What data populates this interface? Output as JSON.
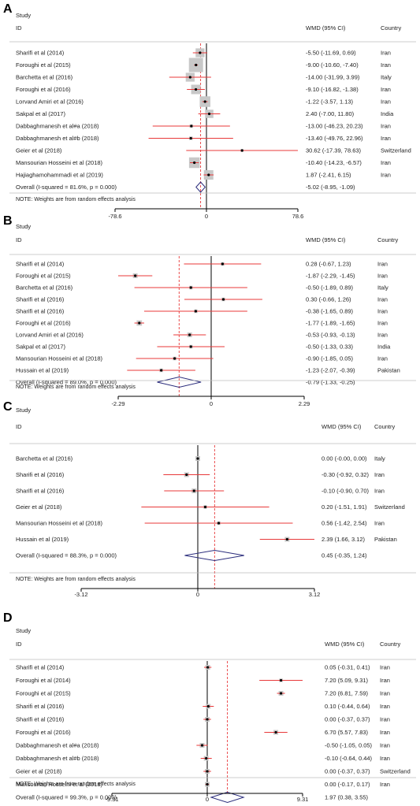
{
  "chart_data": [
    {
      "type": "forest",
      "panel_label": "A",
      "header": {
        "study": "Study",
        "id": "ID",
        "effect": "WMD (95% CI)",
        "country": "Country"
      },
      "xticks": [
        -78.6,
        0,
        78.6
      ],
      "xlim": [
        -78.6,
        78.6
      ],
      "null_line": 0,
      "studies": [
        {
          "label": "Sharifi et al (2014)",
          "est": -5.5,
          "lo": -11.69,
          "hi": 0.69,
          "text": "-5.50 (-11.69, 0.69)",
          "country": "Iran",
          "weight": 0.55
        },
        {
          "label": "Foroughi et al (2015)",
          "est": -9.0,
          "lo": -10.6,
          "hi": -7.4,
          "text": "-9.00 (-10.60, -7.40)",
          "country": "Iran",
          "weight": 1.0
        },
        {
          "label": "Barchetta et al (2016)",
          "est": -14.0,
          "lo": -31.99,
          "hi": 3.99,
          "text": "-14.00 (-31.99, 3.99)",
          "country": "Italy",
          "weight": 0.55
        },
        {
          "label": "Foroughi et al (2016)",
          "est": -9.1,
          "lo": -16.82,
          "hi": -1.38,
          "text": "-9.10 (-16.82, -1.38)",
          "country": "Iran",
          "weight": 0.6
        },
        {
          "label": "Lorvand Amiri et al (2016)",
          "est": -1.22,
          "lo": -3.57,
          "hi": 1.13,
          "text": "-1.22 (-3.57, 1.13)",
          "country": "Iran",
          "weight": 0.7
        },
        {
          "label": "Sakpal et al (2017)",
          "est": 2.4,
          "lo": -7.0,
          "hi": 11.8,
          "text": "2.40 (-7.00, 11.80)",
          "country": "India",
          "weight": 0.5
        },
        {
          "label": "Dabbaghmanesh et al#a (2018)",
          "est": -13.0,
          "lo": -46.23,
          "hi": 20.23,
          "text": "-13.00 (-46.23, 20.23)",
          "country": "Iran",
          "weight": 0.1
        },
        {
          "label": "Dabbaghmanesh et al#b (2018)",
          "est": -13.4,
          "lo": -49.76,
          "hi": 22.96,
          "text": "-13.40 (-49.76, 22.96)",
          "country": "Iran",
          "weight": 0.1
        },
        {
          "label": "Geier et al (2018)",
          "est": 30.62,
          "lo": -17.39,
          "hi": 78.63,
          "text": "30.62 (-17.39, 78.63)",
          "country": "Switzerland",
          "weight": 0.05
        },
        {
          "label": "Mansourian Hosseini et al (2018)",
          "est": -10.4,
          "lo": -14.23,
          "hi": -6.57,
          "text": "-10.40 (-14.23, -6.57)",
          "country": "Iran",
          "weight": 0.7
        },
        {
          "label": "Hajiaghamohammadi et al (2019)",
          "est": 1.87,
          "lo": -2.41,
          "hi": 6.15,
          "text": "1.87 (-2.41, 6.15)",
          "country": "Iran",
          "weight": 0.6
        }
      ],
      "overall": {
        "label": "Overall  (I-squared = 81.6%, p = 0.000)",
        "est": -5.02,
        "lo": -8.95,
        "hi": -1.09,
        "text": "-5.02 (-8.95, -1.09)"
      },
      "note": "NOTE: Weights are from random effects analysis"
    },
    {
      "type": "forest",
      "panel_label": "B",
      "header": {
        "study": "Study",
        "id": "ID",
        "effect": "WMD (95% CI)",
        "country": "Country"
      },
      "xticks": [
        -2.29,
        0,
        2.29
      ],
      "xlim": [
        -2.29,
        2.29
      ],
      "null_line": 0,
      "studies": [
        {
          "label": "Sharifi et al (2014)",
          "est": 0.28,
          "lo": -0.67,
          "hi": 1.23,
          "text": "0.28 (-0.67, 1.23)",
          "country": "Iran",
          "weight": 0.1
        },
        {
          "label": "Foroughi et al (2015)",
          "est": -1.87,
          "lo": -2.29,
          "hi": -1.45,
          "text": "-1.87 (-2.29, -1.45)",
          "country": "Iran",
          "weight": 0.2
        },
        {
          "label": "Barchetta et al (2016)",
          "est": -0.5,
          "lo": -1.89,
          "hi": 0.89,
          "text": "-0.50 (-1.89, 0.89)",
          "country": "Italy",
          "weight": 0.1
        },
        {
          "label": "Sharifi et al (2016)",
          "est": 0.3,
          "lo": -0.66,
          "hi": 1.26,
          "text": "0.30 (-0.66, 1.26)",
          "country": "Iran",
          "weight": 0.1
        },
        {
          "label": "Sharifi et al (2016)",
          "est": -0.38,
          "lo": -1.65,
          "hi": 0.89,
          "text": "-0.38 (-1.65, 0.89)",
          "country": "Iran",
          "weight": 0.1
        },
        {
          "label": "Foroughi et al (2016)",
          "est": -1.77,
          "lo": -1.89,
          "hi": -1.65,
          "text": "-1.77 (-1.89, -1.65)",
          "country": "Iran",
          "weight": 0.25
        },
        {
          "label": "Lorvand Amiri et al (2016)",
          "est": -0.53,
          "lo": -0.93,
          "hi": -0.13,
          "text": "-0.53 (-0.93, -0.13)",
          "country": "Iran",
          "weight": 0.2
        },
        {
          "label": "Sakpal et al (2017)",
          "est": -0.5,
          "lo": -1.33,
          "hi": 0.33,
          "text": "-0.50 (-1.33, 0.33)",
          "country": "India",
          "weight": 0.1
        },
        {
          "label": "Mansourian Hosseini et al (2018)",
          "est": -0.9,
          "lo": -1.85,
          "hi": 0.05,
          "text": "-0.90 (-1.85, 0.05)",
          "country": "Iran",
          "weight": 0.1
        },
        {
          "label": "Hussain et al (2019)",
          "est": -1.23,
          "lo": -2.07,
          "hi": -0.39,
          "text": "-1.23 (-2.07, -0.39)",
          "country": "Pakistan",
          "weight": 0.1
        }
      ],
      "overall": {
        "label": "Overall  (I-squared = 89.0%, p = 0.000)",
        "est": -0.79,
        "lo": -1.33,
        "hi": -0.25,
        "text": "-0.79 (-1.33, -0.25)"
      },
      "note": "NOTE: Weights are from random effects analysis"
    },
    {
      "type": "forest",
      "panel_label": "C",
      "header": {
        "study": "Study",
        "id": "ID",
        "effect": "WMD (95% CI)",
        "country": "Country"
      },
      "xticks": [
        -3.12,
        0,
        3.12
      ],
      "xlim": [
        -3.12,
        3.12
      ],
      "null_line": 0,
      "studies": [
        {
          "label": "Barchetta et al (2016)",
          "est": 0.0,
          "lo": -0.0,
          "hi": 0.0,
          "text": "0.00 (-0.00, 0.00)",
          "country": "Italy",
          "weight": 0.2
        },
        {
          "label": "Sharifi et al (2016)",
          "est": -0.3,
          "lo": -0.92,
          "hi": 0.32,
          "text": "-0.30 (-0.92, 0.32)",
          "country": "Iran",
          "weight": 0.2
        },
        {
          "label": "Sharifi et al (2016)",
          "est": -0.1,
          "lo": -0.9,
          "hi": 0.7,
          "text": "-0.10 (-0.90, 0.70)",
          "country": "Iran",
          "weight": 0.2
        },
        {
          "label": "Geier et al (2018)",
          "est": 0.2,
          "lo": -1.51,
          "hi": 1.91,
          "text": "0.20 (-1.51, 1.91)",
          "country": "Switzerland",
          "weight": 0.1
        },
        {
          "label": "Mansourian Hosseini et al (2018)",
          "est": 0.56,
          "lo": -1.42,
          "hi": 2.54,
          "text": "0.56 (-1.42, 2.54)",
          "country": "Iran",
          "weight": 0.1
        },
        {
          "label": "Hussain et al (2019)",
          "est": 2.39,
          "lo": 1.66,
          "hi": 3.12,
          "text": "2.39 (1.66, 3.12)",
          "country": "Pakistan",
          "weight": 0.2
        }
      ],
      "overall": {
        "label": "Overall  (I-squared = 88.3%, p = 0.000)",
        "est": 0.45,
        "lo": -0.35,
        "hi": 1.24,
        "text": "0.45 (-0.35, 1.24)"
      },
      "note": "NOTE: Weights are from random effects analysis"
    },
    {
      "type": "forest",
      "panel_label": "D",
      "header": {
        "study": "Study",
        "id": "ID",
        "effect": "WMD (95% CI)",
        "country": "Country"
      },
      "xticks": [
        -9.31,
        0,
        9.31
      ],
      "xlim": [
        -9.31,
        9.31
      ],
      "null_line": 0,
      "studies": [
        {
          "label": "Sharifi et al (2014)",
          "est": 0.05,
          "lo": -0.31,
          "hi": 0.41,
          "text": "0.05 (-0.31, 0.41)",
          "country": "Iran",
          "weight": 0.2
        },
        {
          "label": "Foroughi et al (2014)",
          "est": 7.2,
          "lo": 5.09,
          "hi": 9.31,
          "text": "7.20 (5.09, 9.31)",
          "country": "Iran",
          "weight": 0.1
        },
        {
          "label": "Foroughi et al (2015)",
          "est": 7.2,
          "lo": 6.81,
          "hi": 7.59,
          "text": "7.20 (6.81, 7.59)",
          "country": "Iran",
          "weight": 0.2
        },
        {
          "label": "Sharifi et al (2016)",
          "est": 0.1,
          "lo": -0.44,
          "hi": 0.64,
          "text": "0.10 (-0.44, 0.64)",
          "country": "Iran",
          "weight": 0.2
        },
        {
          "label": "Sharifi et al (2016)",
          "est": 0.0,
          "lo": -0.37,
          "hi": 0.37,
          "text": "0.00 (-0.37, 0.37)",
          "country": "Iran",
          "weight": 0.2
        },
        {
          "label": "Foroughi et al (2016)",
          "est": 6.7,
          "lo": 5.57,
          "hi": 7.83,
          "text": "6.70 (5.57, 7.83)",
          "country": "Iran",
          "weight": 0.2
        },
        {
          "label": "Dabbaghmanesh et al#a (2018)",
          "est": -0.5,
          "lo": -1.05,
          "hi": 0.05,
          "text": "-0.50 (-1.05, 0.05)",
          "country": "Iran",
          "weight": 0.2
        },
        {
          "label": "Dabbaghmanesh et al#b (2018)",
          "est": -0.1,
          "lo": -0.64,
          "hi": 0.44,
          "text": "-0.10 (-0.64, 0.44)",
          "country": "Iran",
          "weight": 0.2
        },
        {
          "label": "Geier et al (2018)",
          "est": 0.0,
          "lo": -0.37,
          "hi": 0.37,
          "text": "0.00 (-0.37, 0.37)",
          "country": "Switzerland",
          "weight": 0.2
        },
        {
          "label": "Mansourian Hosseini et al (2018)",
          "est": 0.0,
          "lo": -0.17,
          "hi": 0.17,
          "text": "0.00 (-0.17, 0.17)",
          "country": "Iran",
          "weight": 0.2
        }
      ],
      "overall": {
        "label": "Overall  (I-squared = 99.3%, p = 0.000)",
        "est": 1.97,
        "lo": 0.38,
        "hi": 3.55,
        "text": "1.97 (0.38, 3.55)"
      },
      "note": "NOTE: Weights are from random effects analysis"
    }
  ],
  "colors": {
    "ci_line": "#e8393a",
    "weight_box": "#c8c8c8",
    "diamond": "#2b2d7c",
    "overall_line": "#e8393a",
    "text": "#222222",
    "axis": "#000000"
  }
}
